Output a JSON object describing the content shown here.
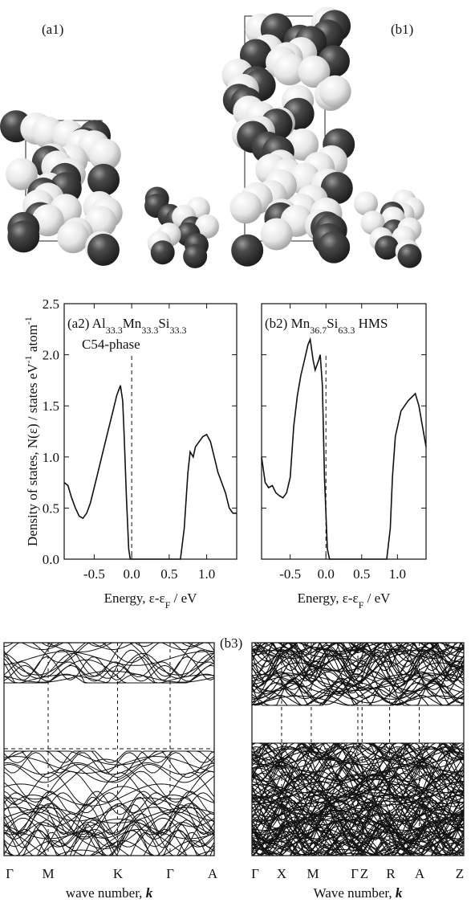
{
  "labels": {
    "a1": "(a1)",
    "b1": "(b1)"
  },
  "chart_data": [
    {
      "type": "line",
      "annotation": [
        "(a2) Al",
        "33.3",
        "Mn",
        "33.3",
        "Si",
        "33.3"
      ],
      "annotation2": "C54-phase",
      "ylabel": [
        "Density of states, N(ε) / states eV",
        "-1",
        " atom",
        "-1"
      ],
      "xlabel": [
        "Energy, ε-ε",
        "F",
        " / eV"
      ],
      "x": [
        -0.9,
        -0.85,
        -0.8,
        -0.75,
        -0.7,
        -0.65,
        -0.6,
        -0.55,
        -0.5,
        -0.45,
        -0.4,
        -0.35,
        -0.3,
        -0.25,
        -0.2,
        -0.15,
        -0.12,
        -0.1,
        -0.07,
        -0.04,
        -0.02,
        0.3,
        0.65,
        0.7,
        0.75,
        0.78,
        0.82,
        0.85,
        0.9,
        0.95,
        1.0,
        1.05,
        1.1,
        1.15,
        1.2,
        1.25,
        1.3,
        1.35,
        1.4
      ],
      "values": [
        0.75,
        0.72,
        0.6,
        0.5,
        0.42,
        0.4,
        0.45,
        0.55,
        0.7,
        0.85,
        1.0,
        1.15,
        1.3,
        1.45,
        1.6,
        1.7,
        1.55,
        1.2,
        0.6,
        0.1,
        0,
        0,
        0,
        0.3,
        0.85,
        1.05,
        1.0,
        1.1,
        1.15,
        1.2,
        1.22,
        1.15,
        1.0,
        0.85,
        0.75,
        0.65,
        0.5,
        0.45,
        0.45
      ],
      "color": "#111",
      "vline": 0,
      "xlim": [
        -0.9,
        1.4
      ],
      "xticks": [
        -0.5,
        {
          "value": 0,
          "label": "0.0"
        },
        0.5,
        {
          "value": 1,
          "label": "1.0"
        }
      ],
      "ylim": [
        0,
        2.5
      ],
      "yticks": [
        {
          "value": 0,
          "label": "0.0"
        },
        0.5,
        {
          "value": 1,
          "label": "1.0"
        },
        1.5,
        {
          "value": 2,
          "label": "2.0"
        },
        2.5
      ]
    },
    {
      "type": "line",
      "annotation": [
        "(b2) Mn",
        "36.7",
        "Si",
        "63.3",
        " HMS"
      ],
      "xlabel": [
        "Energy, ε-ε",
        "F",
        " / eV"
      ],
      "x": [
        -0.9,
        -0.85,
        -0.8,
        -0.75,
        -0.7,
        -0.65,
        -0.6,
        -0.55,
        -0.5,
        -0.45,
        -0.4,
        -0.35,
        -0.3,
        -0.25,
        -0.22,
        -0.18,
        -0.15,
        -0.1,
        -0.08,
        -0.05,
        -0.02,
        0.02,
        0.05,
        0.5,
        0.85,
        0.9,
        0.93,
        0.97,
        1.05,
        1.15,
        1.25,
        1.3,
        1.35,
        1.4
      ],
      "values": [
        1.0,
        0.75,
        0.7,
        0.72,
        0.65,
        0.62,
        0.6,
        0.65,
        0.8,
        1.3,
        1.6,
        1.8,
        1.95,
        2.1,
        2.15,
        1.95,
        1.85,
        1.95,
        2.0,
        1.7,
        0.8,
        0.1,
        0,
        0,
        0,
        0.3,
        0.8,
        1.2,
        1.45,
        1.55,
        1.62,
        1.5,
        1.3,
        1.1
      ],
      "color": "#111",
      "vline": 0,
      "xlim": [
        -0.9,
        1.4
      ],
      "xticks": [
        -0.5,
        {
          "value": 0,
          "label": "0.0"
        },
        0.5,
        {
          "value": 1,
          "label": "1.0"
        }
      ],
      "ylim": [
        0,
        2.5
      ],
      "yticks": [
        0,
        0.5,
        1,
        1.5,
        2,
        2.5
      ]
    }
  ],
  "band_left": {
    "kpoints": [
      "Γ",
      "M",
      "K",
      "Γ",
      "A"
    ],
    "xlabel": [
      "wave number, ",
      "k"
    ]
  },
  "band_right": {
    "label": "(b3)",
    "kpoints": [
      "Γ",
      "X",
      "M",
      "Γ",
      "Z",
      "R",
      "A",
      "Z"
    ],
    "xlabel": [
      "Wave number, ",
      "k"
    ]
  }
}
